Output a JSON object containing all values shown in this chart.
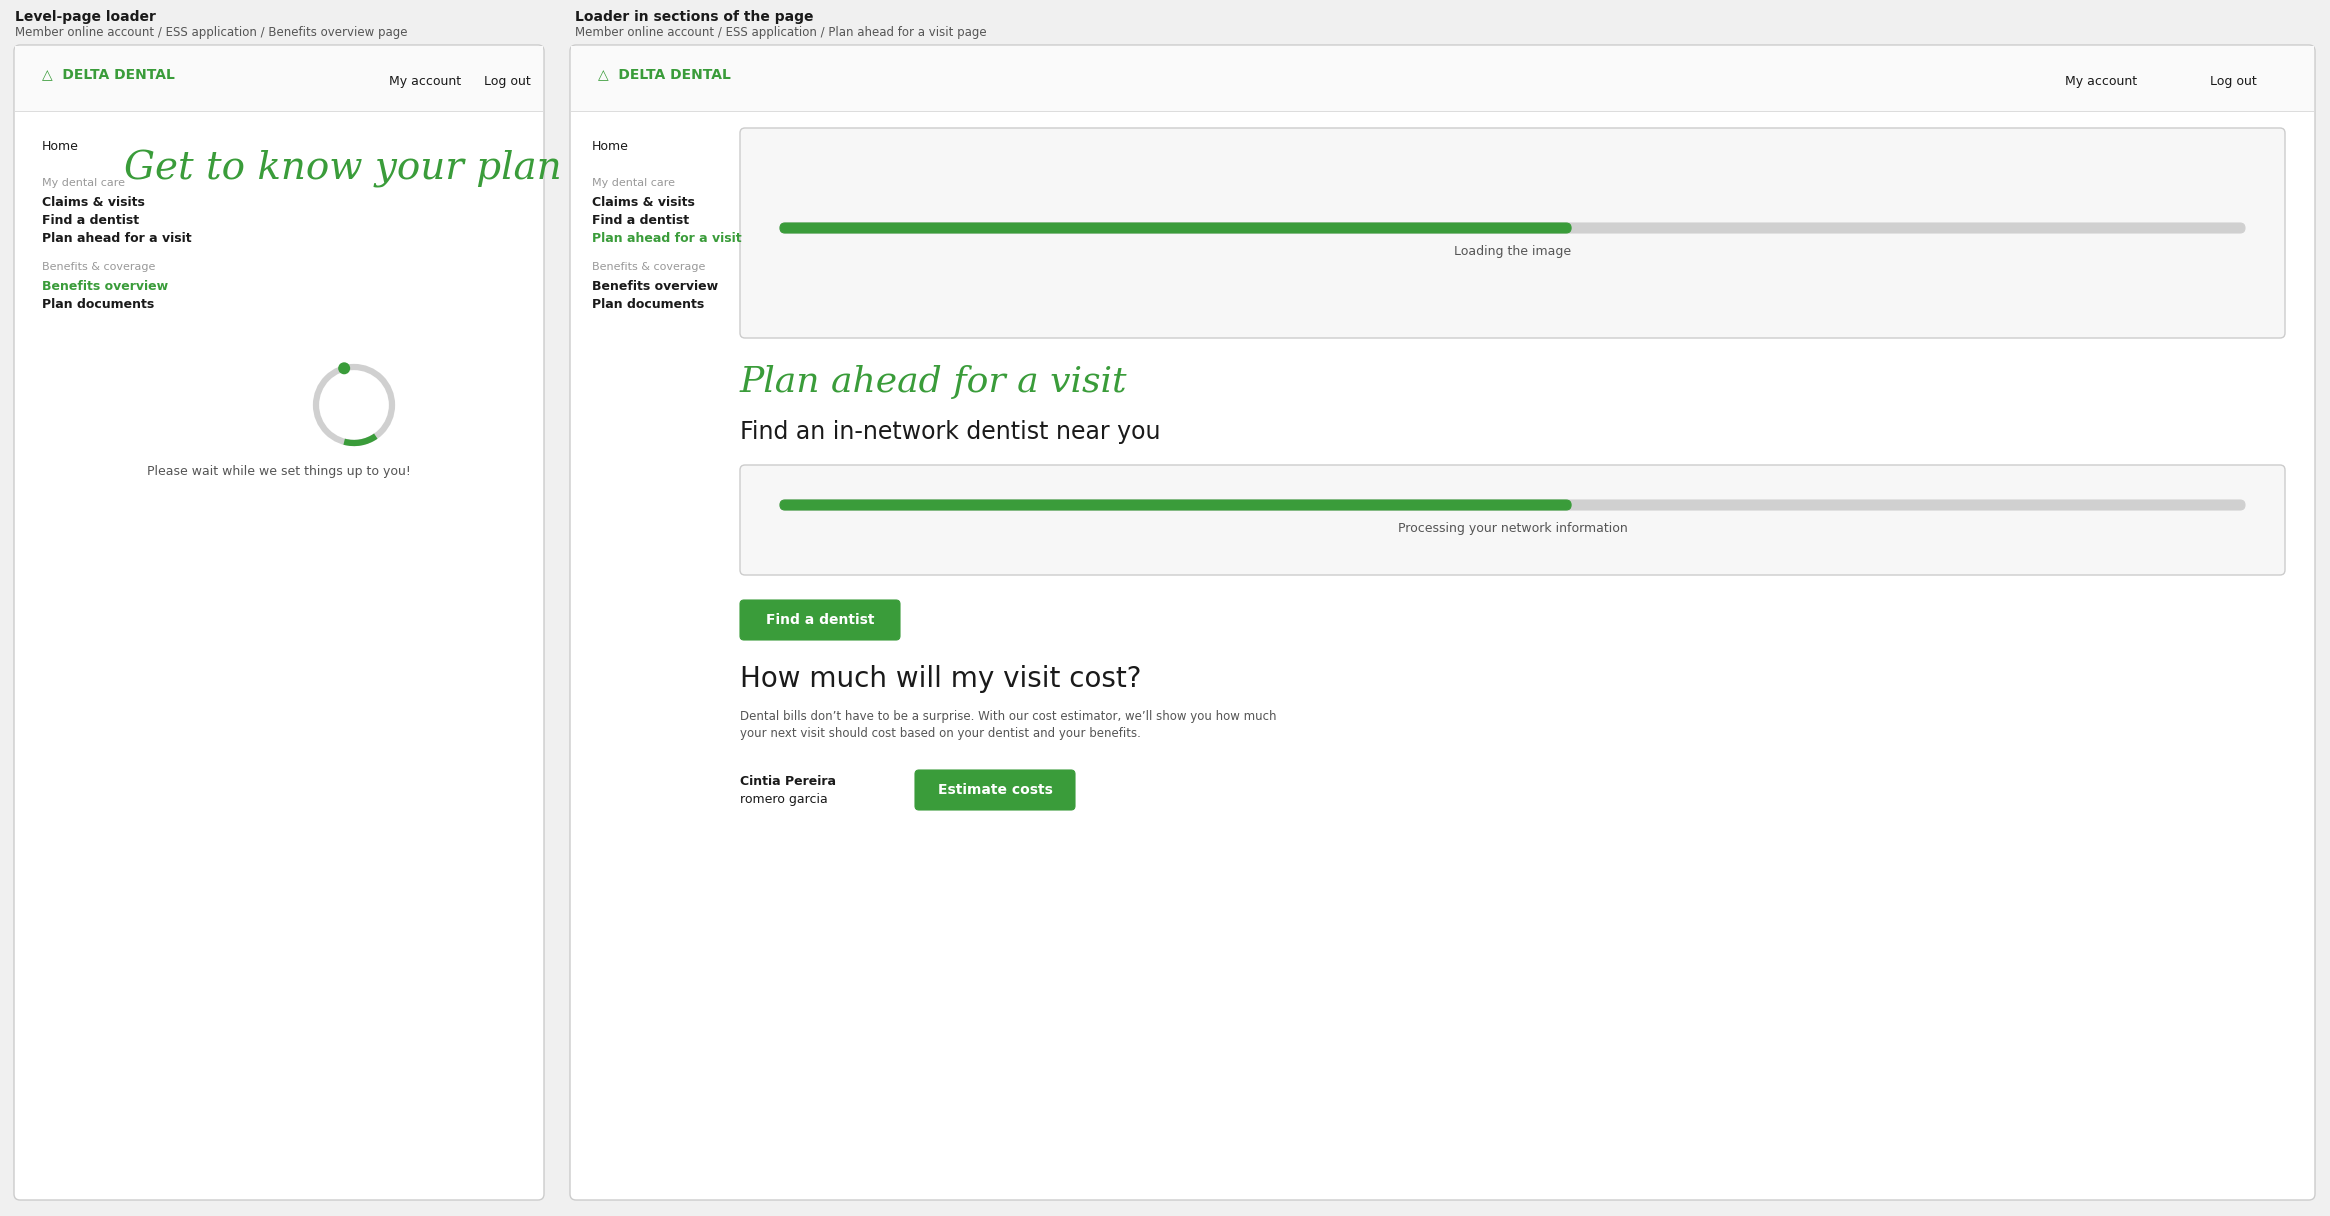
{
  "outer_bg": "#f0f0f0",
  "panel_bg": "#ffffff",
  "panel_border": "#cccccc",
  "green_color": "#3a9c3a",
  "green_btn": "#3a9c3a",
  "gray_bar": "#d0d0d0",
  "nav_link_color": "#3a9c3a",
  "nav_label_color": "#999999",
  "text_dark": "#1a1a1a",
  "text_medium": "#555555",
  "divider_color": "#dddddd",
  "left_title": "Level-page loader",
  "left_subtitle": "Member online account / ESS application / Benefits overview page",
  "right_title": "Loader in sections of the page",
  "right_subtitle": "Member online account / ESS application / Plan ahead for a visit page",
  "logo_text": "△  DELTA DENTAL",
  "nav_my_account": "My account",
  "nav_log_out": "Log out",
  "left_nav_home": "Home",
  "left_nav_dental_label": "My dental care",
  "left_nav_claims": "Claims & visits",
  "left_nav_find": "Find a dentist",
  "left_nav_plan": "Plan ahead for a visit",
  "left_nav_benefits_label": "Benefits & coverage",
  "left_nav_benefits_overview": "Benefits overview",
  "left_nav_plan_docs": "Plan documents",
  "left_heading": "Get to know your plan",
  "left_loader_text": "Please wait while we set things up to you!",
  "right_nav_home": "Home",
  "right_nav_dental_label": "My dental care",
  "right_nav_claims": "Claims & visits",
  "right_nav_find": "Find a dentist",
  "right_nav_plan": "Plan ahead for a visit",
  "right_nav_benefits_label": "Benefits & coverage",
  "right_nav_benefits_overview": "Benefits overview",
  "right_nav_plan_docs": "Plan documents",
  "right_section1_loading_text": "Loading the image",
  "right_plan_heading": "Plan ahead for a visit",
  "right_find_heading": "Find an in-network dentist near you",
  "right_processing_text": "Processing your network information",
  "right_find_btn": "Find a dentist",
  "right_cost_heading": "How much will my visit cost?",
  "right_cost_desc1": "Dental bills don’t have to be a surprise. With our cost estimator, we’ll show you how much",
  "right_cost_desc2": "your next visit should cost based on your dentist and your benefits.",
  "right_name1": "Cintia Pereira",
  "right_name2": "romero garcia",
  "right_estimate_btn": "Estimate costs",
  "figw": 23.3,
  "figh": 12.16,
  "dpi": 100
}
